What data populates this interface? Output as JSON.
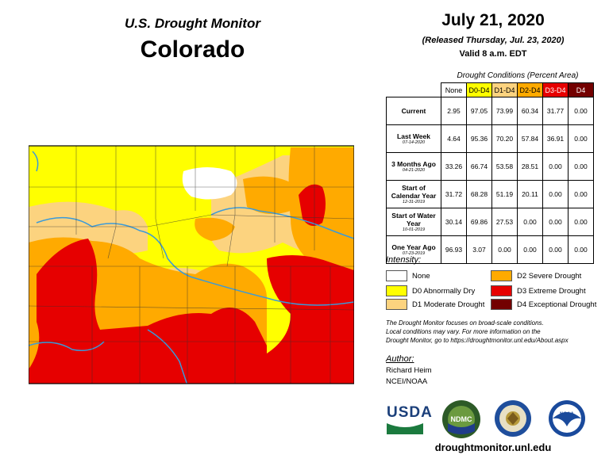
{
  "title_top": "U.S. Drought Monitor",
  "title_state": "Colorado",
  "header": {
    "date": "July 21, 2020",
    "released": "(Released Thursday, Jul. 23, 2020)",
    "valid": "Valid 8 a.m. EDT"
  },
  "table": {
    "caption": "Drought Conditions (Percent Area)",
    "columns": [
      "None",
      "D0-D4",
      "D1-D4",
      "D2-D4",
      "D3-D4",
      "D4"
    ],
    "rows": [
      {
        "label": "Current",
        "date": "",
        "values": [
          "2.95",
          "97.05",
          "73.99",
          "60.34",
          "31.77",
          "0.00"
        ]
      },
      {
        "label": "Last Week",
        "date": "07-14-2020",
        "values": [
          "4.64",
          "95.36",
          "70.20",
          "57.84",
          "36.91",
          "0.00"
        ]
      },
      {
        "label": "3 Months Ago",
        "date": "04-21-2020",
        "values": [
          "33.26",
          "66.74",
          "53.58",
          "28.51",
          "0.00",
          "0.00"
        ]
      },
      {
        "label": "Start of Calendar Year",
        "date": "12-31-2019",
        "values": [
          "31.72",
          "68.28",
          "51.19",
          "20.11",
          "0.00",
          "0.00"
        ]
      },
      {
        "label": "Start of Water Year",
        "date": "10-01-2019",
        "values": [
          "30.14",
          "69.86",
          "27.53",
          "0.00",
          "0.00",
          "0.00"
        ]
      },
      {
        "label": "One Year Ago",
        "date": "07-23-2019",
        "values": [
          "96.93",
          "3.07",
          "0.00",
          "0.00",
          "0.00",
          "0.00"
        ]
      }
    ]
  },
  "legend": {
    "title": "Intensity:",
    "items": [
      {
        "label": "None",
        "color": "#ffffff"
      },
      {
        "label": "D0 Abnormally Dry",
        "color": "#ffff00"
      },
      {
        "label": "D1 Moderate Drought",
        "color": "#fcd37f"
      },
      {
        "label": "D2 Severe Drought",
        "color": "#ffaa00"
      },
      {
        "label": "D3 Extreme Drought",
        "color": "#e60000"
      },
      {
        "label": "D4 Exceptional Drought",
        "color": "#730000"
      }
    ]
  },
  "note": {
    "line1": "The Drought Monitor focuses on broad-scale conditions.",
    "line2": "Local conditions may vary. For more information on the",
    "line3": "Drought Monitor, go to https://droughtmonitor.unl.edu/About.aspx"
  },
  "author": {
    "title": "Author:",
    "name": "Richard Heim",
    "org": "NCEI/NOAA"
  },
  "logos": {
    "usda": "USDA",
    "ndmc": "NDMC",
    "noaa": "NOAA"
  },
  "url": "droughtmonitor.unl.edu",
  "colors": {
    "none": "#ffffff",
    "d0": "#ffff00",
    "d1": "#fcd37f",
    "d2": "#ffaa00",
    "d3": "#e60000",
    "d4": "#730000",
    "river": "#3a9ad9"
  }
}
